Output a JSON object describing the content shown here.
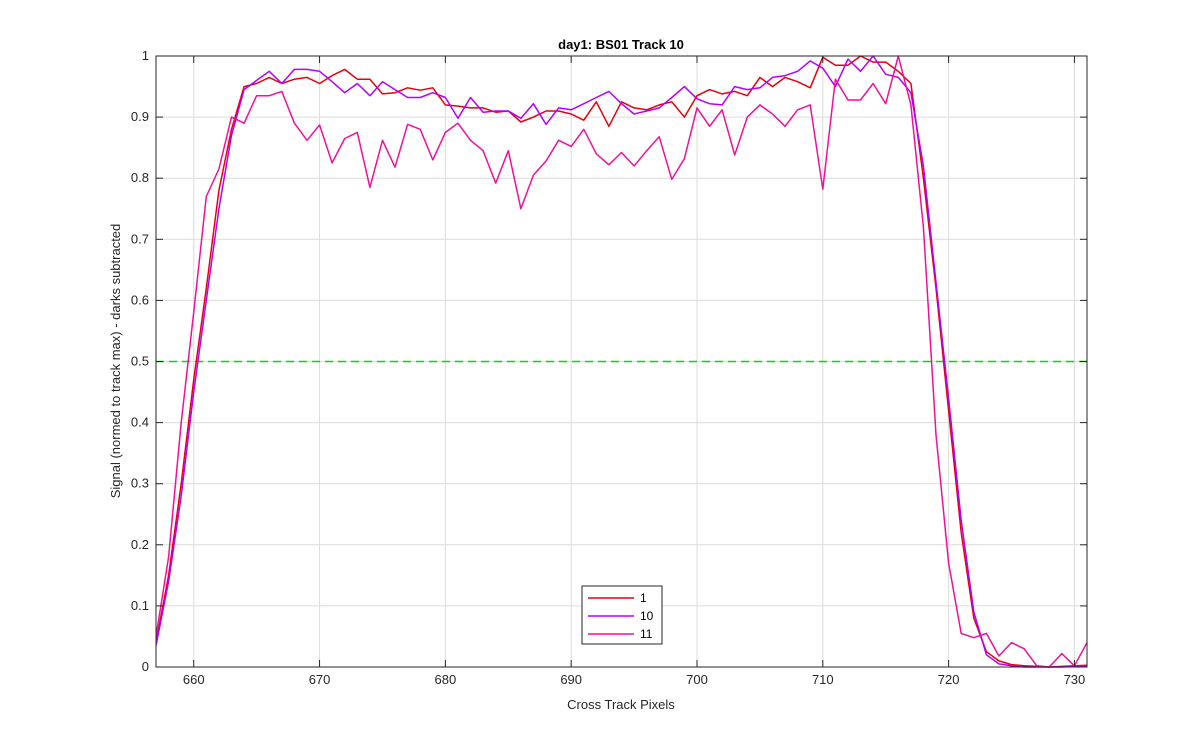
{
  "chart_data": {
    "type": "line",
    "title": "day1: BS01  Track 10",
    "xlabel": "Cross Track Pixels",
    "ylabel": "Signal (normed to track max) - darks subtracted",
    "xlim": [
      657,
      731
    ],
    "ylim": [
      0,
      1
    ],
    "x_ticks": [
      660,
      670,
      680,
      690,
      700,
      710,
      720,
      730
    ],
    "y_ticks": [
      0,
      0.1,
      0.2,
      0.3,
      0.4,
      0.5,
      0.6,
      0.7,
      0.8,
      0.9,
      1
    ],
    "grid": true,
    "legend_position": "bottom-center",
    "reference_line": {
      "y": 0.5,
      "color": "#00dd00",
      "style": "dashed"
    },
    "series": [
      {
        "name": "1",
        "color": "#e8000b",
        "points": [
          [
            657,
            0.04
          ],
          [
            658,
            0.15
          ],
          [
            659,
            0.3
          ],
          [
            660,
            0.47
          ],
          [
            661,
            0.62
          ],
          [
            662,
            0.78
          ],
          [
            663,
            0.88
          ],
          [
            664,
            0.95
          ],
          [
            665,
            0.955
          ],
          [
            666,
            0.965
          ],
          [
            667,
            0.955
          ],
          [
            668,
            0.962
          ],
          [
            669,
            0.965
          ],
          [
            670,
            0.955
          ],
          [
            671,
            0.968
          ],
          [
            672,
            0.978
          ],
          [
            673,
            0.962
          ],
          [
            674,
            0.962
          ],
          [
            675,
            0.938
          ],
          [
            676,
            0.94
          ],
          [
            677,
            0.948
          ],
          [
            678,
            0.944
          ],
          [
            679,
            0.948
          ],
          [
            680,
            0.92
          ],
          [
            681,
            0.918
          ],
          [
            682,
            0.915
          ],
          [
            683,
            0.915
          ],
          [
            684,
            0.908
          ],
          [
            685,
            0.91
          ],
          [
            686,
            0.892
          ],
          [
            687,
            0.9
          ],
          [
            688,
            0.91
          ],
          [
            689,
            0.91
          ],
          [
            690,
            0.905
          ],
          [
            691,
            0.895
          ],
          [
            692,
            0.925
          ],
          [
            693,
            0.885
          ],
          [
            694,
            0.925
          ],
          [
            695,
            0.915
          ],
          [
            696,
            0.912
          ],
          [
            697,
            0.92
          ],
          [
            698,
            0.925
          ],
          [
            699,
            0.9
          ],
          [
            700,
            0.935
          ],
          [
            701,
            0.945
          ],
          [
            702,
            0.938
          ],
          [
            703,
            0.942
          ],
          [
            704,
            0.935
          ],
          [
            705,
            0.965
          ],
          [
            706,
            0.95
          ],
          [
            707,
            0.965
          ],
          [
            708,
            0.958
          ],
          [
            709,
            0.948
          ],
          [
            710,
            0.998
          ],
          [
            711,
            0.985
          ],
          [
            712,
            0.985
          ],
          [
            713,
            1.0
          ],
          [
            714,
            0.99
          ],
          [
            715,
            0.99
          ],
          [
            716,
            0.975
          ],
          [
            717,
            0.955
          ],
          [
            718,
            0.8
          ],
          [
            719,
            0.62
          ],
          [
            720,
            0.42
          ],
          [
            721,
            0.22
          ],
          [
            722,
            0.08
          ],
          [
            723,
            0.025
          ],
          [
            724,
            0.01
          ],
          [
            725,
            0.004
          ],
          [
            726,
            0.002
          ],
          [
            727,
            0.001
          ],
          [
            728,
            0.0
          ],
          [
            729,
            0.001
          ],
          [
            730,
            0.002
          ],
          [
            731,
            0.003
          ]
        ]
      },
      {
        "name": "10",
        "color": "#b400ff",
        "points": [
          [
            657,
            0.035
          ],
          [
            658,
            0.14
          ],
          [
            659,
            0.28
          ],
          [
            660,
            0.45
          ],
          [
            661,
            0.6
          ],
          [
            662,
            0.75
          ],
          [
            663,
            0.87
          ],
          [
            664,
            0.945
          ],
          [
            665,
            0.96
          ],
          [
            666,
            0.975
          ],
          [
            667,
            0.955
          ],
          [
            668,
            0.978
          ],
          [
            669,
            0.978
          ],
          [
            670,
            0.975
          ],
          [
            671,
            0.958
          ],
          [
            672,
            0.94
          ],
          [
            673,
            0.955
          ],
          [
            674,
            0.935
          ],
          [
            675,
            0.958
          ],
          [
            676,
            0.945
          ],
          [
            677,
            0.932
          ],
          [
            678,
            0.932
          ],
          [
            679,
            0.94
          ],
          [
            680,
            0.932
          ],
          [
            681,
            0.898
          ],
          [
            682,
            0.932
          ],
          [
            683,
            0.908
          ],
          [
            684,
            0.91
          ],
          [
            685,
            0.91
          ],
          [
            686,
            0.898
          ],
          [
            687,
            0.922
          ],
          [
            688,
            0.888
          ],
          [
            689,
            0.915
          ],
          [
            690,
            0.912
          ],
          [
            691,
            0.922
          ],
          [
            692,
            0.932
          ],
          [
            693,
            0.942
          ],
          [
            694,
            0.922
          ],
          [
            695,
            0.905
          ],
          [
            696,
            0.91
          ],
          [
            697,
            0.915
          ],
          [
            698,
            0.932
          ],
          [
            699,
            0.95
          ],
          [
            700,
            0.93
          ],
          [
            701,
            0.922
          ],
          [
            702,
            0.92
          ],
          [
            703,
            0.95
          ],
          [
            704,
            0.945
          ],
          [
            705,
            0.948
          ],
          [
            706,
            0.965
          ],
          [
            707,
            0.968
          ],
          [
            708,
            0.975
          ],
          [
            709,
            0.992
          ],
          [
            710,
            0.98
          ],
          [
            711,
            0.95
          ],
          [
            712,
            0.995
          ],
          [
            713,
            0.975
          ],
          [
            714,
            1.0
          ],
          [
            715,
            0.97
          ],
          [
            716,
            0.965
          ],
          [
            717,
            0.94
          ],
          [
            718,
            0.82
          ],
          [
            719,
            0.63
          ],
          [
            720,
            0.44
          ],
          [
            721,
            0.24
          ],
          [
            722,
            0.09
          ],
          [
            723,
            0.02
          ],
          [
            724,
            0.005
          ],
          [
            725,
            0.002
          ],
          [
            726,
            0.0
          ],
          [
            727,
            0.0
          ],
          [
            728,
            0.0
          ],
          [
            729,
            0.0
          ],
          [
            730,
            0.001
          ],
          [
            731,
            0.002
          ]
        ]
      },
      {
        "name": "11",
        "color": "#ee1199",
        "points": [
          [
            657,
            0.05
          ],
          [
            658,
            0.18
          ],
          [
            659,
            0.4
          ],
          [
            660,
            0.58
          ],
          [
            661,
            0.77
          ],
          [
            662,
            0.815
          ],
          [
            663,
            0.9
          ],
          [
            664,
            0.89
          ],
          [
            665,
            0.935
          ],
          [
            666,
            0.935
          ],
          [
            667,
            0.942
          ],
          [
            668,
            0.89
          ],
          [
            669,
            0.862
          ],
          [
            670,
            0.887
          ],
          [
            671,
            0.825
          ],
          [
            672,
            0.865
          ],
          [
            673,
            0.875
          ],
          [
            674,
            0.785
          ],
          [
            675,
            0.862
          ],
          [
            676,
            0.818
          ],
          [
            677,
            0.888
          ],
          [
            678,
            0.88
          ],
          [
            679,
            0.83
          ],
          [
            680,
            0.875
          ],
          [
            681,
            0.89
          ],
          [
            682,
            0.862
          ],
          [
            683,
            0.845
          ],
          [
            684,
            0.792
          ],
          [
            685,
            0.845
          ],
          [
            686,
            0.75
          ],
          [
            687,
            0.805
          ],
          [
            688,
            0.828
          ],
          [
            689,
            0.862
          ],
          [
            690,
            0.852
          ],
          [
            691,
            0.88
          ],
          [
            692,
            0.84
          ],
          [
            693,
            0.822
          ],
          [
            694,
            0.842
          ],
          [
            695,
            0.82
          ],
          [
            696,
            0.845
          ],
          [
            697,
            0.868
          ],
          [
            698,
            0.798
          ],
          [
            699,
            0.832
          ],
          [
            700,
            0.915
          ],
          [
            701,
            0.885
          ],
          [
            702,
            0.912
          ],
          [
            703,
            0.838
          ],
          [
            704,
            0.9
          ],
          [
            705,
            0.92
          ],
          [
            706,
            0.905
          ],
          [
            707,
            0.885
          ],
          [
            708,
            0.912
          ],
          [
            709,
            0.92
          ],
          [
            710,
            0.782
          ],
          [
            711,
            0.962
          ],
          [
            712,
            0.928
          ],
          [
            713,
            0.928
          ],
          [
            714,
            0.955
          ],
          [
            715,
            0.922
          ],
          [
            716,
            1.0
          ],
          [
            717,
            0.92
          ],
          [
            718,
            0.72
          ],
          [
            719,
            0.38
          ],
          [
            720,
            0.17
          ],
          [
            721,
            0.055
          ],
          [
            722,
            0.048
          ],
          [
            723,
            0.055
          ],
          [
            724,
            0.018
          ],
          [
            725,
            0.04
          ],
          [
            726,
            0.03
          ],
          [
            727,
            0.002
          ],
          [
            728,
            0.0
          ],
          [
            729,
            0.022
          ],
          [
            730,
            0.002
          ],
          [
            731,
            0.04
          ]
        ]
      }
    ]
  }
}
